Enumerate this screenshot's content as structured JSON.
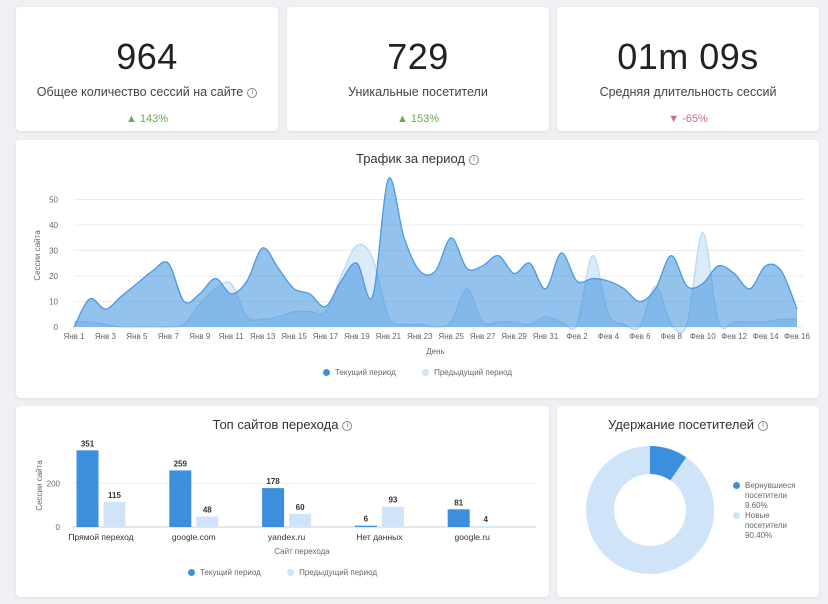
{
  "kpis": [
    {
      "value": "964",
      "label": "Общее количество сессий на сайте",
      "info": true,
      "change": "▲ 143%",
      "direction": "up"
    },
    {
      "value": "729",
      "label": "Уникальные посетители",
      "info": false,
      "change": "▲ 153%",
      "direction": "up"
    },
    {
      "value": "01m 09s",
      "label": "Средняя длительность сессий",
      "info": false,
      "change": "▼ -65%",
      "direction": "down"
    }
  ],
  "info_glyph": "i",
  "colors": {
    "current": "#3b8fdd",
    "previous": "#cfe4f8",
    "up": "#6aa84f",
    "down": "#c96b8b"
  },
  "traffic": {
    "title": "Трафик за период",
    "legend_current": "Текущий период",
    "legend_previous": "Предыдущий период"
  },
  "sources": {
    "title": "Топ сайтов перехода",
    "legend_current": "Текущий период",
    "legend_previous": "Предыдущий период"
  },
  "retention": {
    "title": "Удержание посетителей",
    "legend": [
      {
        "line1": "Вернувшиеся",
        "line2": "посетители",
        "line3": "9.60%"
      },
      {
        "line1": "Новые",
        "line2": "посетители",
        "line3": "90.40%"
      }
    ]
  },
  "chart_data": [
    {
      "type": "area",
      "title": "Трафик за период",
      "xlabel": "День",
      "ylabel": "Сессии сайта",
      "ylim": [
        0,
        60
      ],
      "yticks": [
        0,
        10,
        20,
        30,
        40,
        50
      ],
      "x_tick_labels": [
        "Янв 1",
        "Янв 3",
        "Янв 5",
        "Янв 7",
        "Янв 9",
        "Янв 11",
        "Янв 13",
        "Янв 15",
        "Янв 17",
        "Янв 19",
        "Янв 21",
        "Янв 23",
        "Янв 25",
        "Янв 27",
        "Янв 29",
        "Янв 31",
        "Фев 2",
        "Фев 4",
        "Фев 6",
        "Фев 8",
        "Фев 10",
        "Фев 12",
        "Фев 14",
        "Фев 16"
      ],
      "grid": true,
      "legend_position": "bottom",
      "series": [
        {
          "name": "Текущий период",
          "values": [
            0,
            11,
            7,
            12,
            17,
            22,
            25,
            10,
            13,
            19,
            13,
            18,
            31,
            23,
            15,
            13,
            8,
            18,
            25,
            12,
            58,
            35,
            22,
            22,
            35,
            23,
            24,
            28,
            21,
            25,
            15,
            29,
            18,
            19,
            18,
            15,
            10,
            15,
            28,
            16,
            17,
            24,
            21,
            15,
            24,
            22,
            7
          ]
        },
        {
          "name": "Предыдущий период",
          "values": [
            2,
            2,
            1,
            0,
            0,
            0,
            0,
            1,
            9,
            15,
            17,
            4,
            3,
            4,
            6,
            6,
            6,
            20,
            32,
            27,
            4,
            1,
            1,
            0,
            2,
            15,
            2,
            2,
            2,
            1,
            4,
            2,
            1,
            28,
            5,
            1,
            0,
            16,
            1,
            1,
            37,
            2,
            2,
            2,
            2,
            3,
            3
          ]
        }
      ]
    },
    {
      "type": "bar",
      "title": "Топ сайтов перехода",
      "xlabel": "Сайт перехода",
      "ylabel": "Сессии сайта",
      "ylim": [
        0,
        380
      ],
      "yticks": [
        0,
        200
      ],
      "categories": [
        "Прямой переход",
        "google.com",
        "yandex.ru",
        "Нет данных",
        "google.ru"
      ],
      "series": [
        {
          "name": "Текущий период",
          "values": [
            351,
            259,
            178,
            6,
            81
          ]
        },
        {
          "name": "Предыдущий период",
          "values": [
            115,
            48,
            60,
            93,
            4
          ]
        }
      ],
      "legend_position": "bottom"
    },
    {
      "type": "pie",
      "title": "Удержание посетителей",
      "categories": [
        "Вернувшиеся посетители",
        "Новые посетители"
      ],
      "values": [
        9.6,
        90.4
      ],
      "legend_position": "right"
    }
  ]
}
